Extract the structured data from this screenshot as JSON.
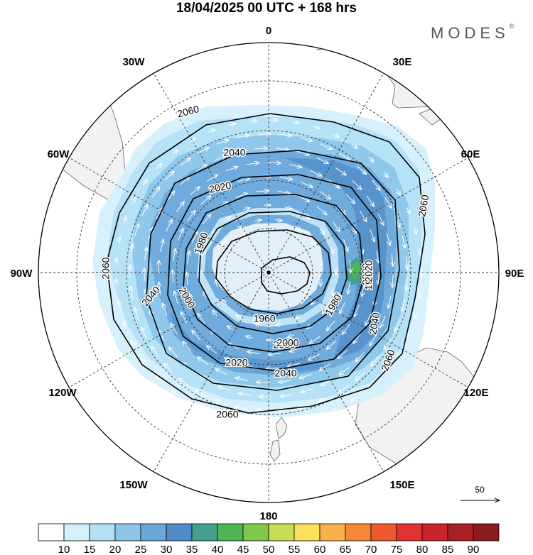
{
  "title": "18/04/2025  00 UTC  + 168 hrs",
  "brand": "MODES",
  "brand_mark": "©",
  "longitude_labels": [
    "0",
    "30E",
    "60E",
    "90E",
    "120E",
    "150E",
    "180",
    "150W",
    "120W",
    "90W",
    "60W",
    "30W"
  ],
  "contour_labels": [
    "2060",
    "2040",
    "2020",
    "1980",
    "2060",
    "2040",
    "2000",
    "1980",
    "1960",
    "2020",
    "2000",
    "1960",
    "2020",
    "2040",
    "2060",
    "2060",
    "2020",
    "2000",
    "1980",
    "2040",
    "2060"
  ],
  "reference_vector": {
    "label": "50"
  },
  "colorbar": {
    "ticks": [
      "10",
      "15",
      "20",
      "25",
      "30",
      "35",
      "40",
      "45",
      "50",
      "55",
      "60",
      "65",
      "70",
      "75",
      "80",
      "85",
      "90"
    ],
    "colors": [
      "#ffffff",
      "#d4f0fb",
      "#b3e0f5",
      "#8ec6ea",
      "#6ba7da",
      "#4f8cc6",
      "#46a08f",
      "#4fb555",
      "#82c84a",
      "#c9de55",
      "#fbe05c",
      "#f9b24b",
      "#f48838",
      "#ec5a2e",
      "#e03434",
      "#c9232b",
      "#a91f24",
      "#8a1b1f"
    ]
  }
}
